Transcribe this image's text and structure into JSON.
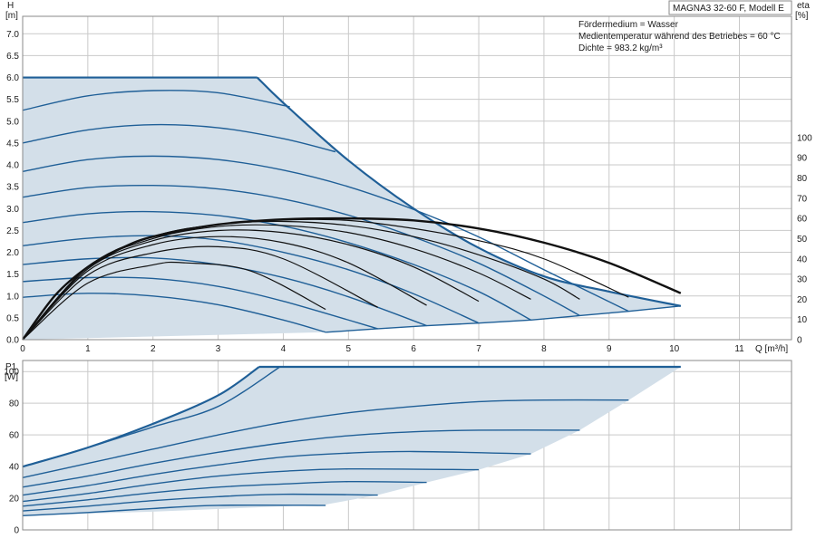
{
  "header": {
    "title": "MAGNA3 32-60 F, Modell E",
    "info_lines": [
      "Fördermedium = Wasser",
      "Medientemperatur während des Betriebes = 60 °C",
      "Dichte = 983.2 kg/m³"
    ]
  },
  "chart_data": [
    {
      "type": "line",
      "name": "head",
      "ylabel_top": "H",
      "ylabel_unit": "[m]",
      "xlabel": "Q [m³/h]",
      "y2label_top": "eta",
      "y2label_unit": "[%]",
      "xlim": [
        0,
        11.8
      ],
      "ylim": [
        0,
        7.4
      ],
      "y2lim": [
        0,
        160
      ],
      "xticks": [
        "0",
        "1",
        "2",
        "3",
        "4",
        "5",
        "6",
        "7",
        "8",
        "9",
        "10",
        "11"
      ],
      "yticks": [
        "0.0",
        "0.5",
        "1.0",
        "1.5",
        "2.0",
        "2.5",
        "3.0",
        "3.5",
        "4.0",
        "4.5",
        "5.0",
        "5.5",
        "6.0",
        "6.5",
        "7.0"
      ],
      "y2ticks": [
        "0",
        "10",
        "20",
        "30",
        "40",
        "50",
        "60",
        "70",
        "80",
        "90",
        "100"
      ],
      "grid": true,
      "max_curve": [
        [
          0,
          6.0
        ],
        [
          3.6,
          6.0
        ],
        [
          4.0,
          5.42
        ],
        [
          5.0,
          4.1
        ],
        [
          6.0,
          3.0
        ],
        [
          7.0,
          2.1
        ],
        [
          8.0,
          1.45
        ],
        [
          9.0,
          1.1
        ],
        [
          10.1,
          0.77
        ]
      ],
      "min_boundary": [
        [
          0,
          0.0
        ],
        [
          4.65,
          0.17
        ],
        [
          5.45,
          0.25
        ],
        [
          6.2,
          0.32
        ],
        [
          7.0,
          0.38
        ],
        [
          7.8,
          0.45
        ],
        [
          8.55,
          0.55
        ],
        [
          9.3,
          0.65
        ],
        [
          10.1,
          0.77
        ]
      ],
      "speed_curves": [
        [
          [
            0,
            0.97
          ],
          [
            1,
            1.06
          ],
          [
            2,
            1.0
          ],
          [
            3,
            0.8
          ],
          [
            4,
            0.45
          ],
          [
            4.65,
            0.17
          ]
        ],
        [
          [
            0,
            1.33
          ],
          [
            1,
            1.42
          ],
          [
            2,
            1.4
          ],
          [
            3,
            1.22
          ],
          [
            4,
            0.88
          ],
          [
            5.45,
            0.25
          ]
        ],
        [
          [
            0,
            1.72
          ],
          [
            1,
            1.85
          ],
          [
            2,
            1.87
          ],
          [
            3,
            1.72
          ],
          [
            4,
            1.42
          ],
          [
            5,
            0.98
          ],
          [
            6.2,
            0.32
          ]
        ],
        [
          [
            0,
            2.15
          ],
          [
            1,
            2.32
          ],
          [
            2,
            2.38
          ],
          [
            3,
            2.28
          ],
          [
            4,
            2.0
          ],
          [
            5,
            1.6
          ],
          [
            6,
            1.05
          ],
          [
            7.0,
            0.38
          ]
        ],
        [
          [
            0,
            2.68
          ],
          [
            1,
            2.88
          ],
          [
            2,
            2.93
          ],
          [
            3,
            2.84
          ],
          [
            4,
            2.6
          ],
          [
            5,
            2.22
          ],
          [
            6,
            1.72
          ],
          [
            7,
            1.1
          ],
          [
            7.8,
            0.45
          ]
        ],
        [
          [
            0,
            3.26
          ],
          [
            1,
            3.48
          ],
          [
            2,
            3.53
          ],
          [
            3,
            3.45
          ],
          [
            4,
            3.22
          ],
          [
            5,
            2.85
          ],
          [
            6,
            2.35
          ],
          [
            7,
            1.75
          ],
          [
            8,
            1.0
          ],
          [
            8.55,
            0.55
          ]
        ],
        [
          [
            0,
            3.85
          ],
          [
            1,
            4.12
          ],
          [
            2,
            4.2
          ],
          [
            3,
            4.12
          ],
          [
            4,
            3.88
          ],
          [
            5,
            3.5
          ],
          [
            6,
            2.98
          ],
          [
            7,
            2.35
          ],
          [
            8,
            1.6
          ],
          [
            9.3,
            0.65
          ]
        ],
        [
          [
            0,
            4.5
          ],
          [
            1,
            4.8
          ],
          [
            2,
            4.92
          ],
          [
            3,
            4.85
          ],
          [
            4,
            4.6
          ],
          [
            4.8,
            4.3
          ]
        ],
        [
          [
            0,
            5.25
          ],
          [
            1,
            5.58
          ],
          [
            2,
            5.7
          ],
          [
            3,
            5.65
          ],
          [
            4.1,
            5.33
          ]
        ]
      ],
      "eta_envelope": [
        [
          0,
          0
        ],
        [
          0.5,
          22
        ],
        [
          1,
          36
        ],
        [
          1.5,
          45
        ],
        [
          2,
          51
        ],
        [
          3,
          57
        ],
        [
          4,
          59.5
        ],
        [
          5,
          60
        ],
        [
          6,
          59
        ],
        [
          7,
          55
        ],
        [
          8,
          48
        ],
        [
          9,
          38
        ],
        [
          10.1,
          23
        ]
      ],
      "eta_curves": [
        [
          [
            0,
            0
          ],
          [
            1,
            28
          ],
          [
            2,
            37
          ],
          [
            2.5,
            38
          ],
          [
            3.5,
            34
          ],
          [
            4.65,
            15
          ]
        ],
        [
          [
            0,
            0
          ],
          [
            1,
            32
          ],
          [
            2,
            43
          ],
          [
            3,
            46
          ],
          [
            4,
            40
          ],
          [
            5.45,
            16
          ]
        ],
        [
          [
            0,
            0
          ],
          [
            1,
            34
          ],
          [
            2,
            47
          ],
          [
            3,
            51
          ],
          [
            4,
            48
          ],
          [
            5,
            38
          ],
          [
            6.2,
            17
          ]
        ],
        [
          [
            0,
            0
          ],
          [
            1,
            35
          ],
          [
            2,
            49
          ],
          [
            3,
            54
          ],
          [
            4,
            53
          ],
          [
            5,
            47
          ],
          [
            6,
            36
          ],
          [
            7.0,
            19
          ]
        ],
        [
          [
            0,
            0
          ],
          [
            1,
            36
          ],
          [
            2,
            50
          ],
          [
            3,
            56
          ],
          [
            4,
            56.5
          ],
          [
            5,
            53
          ],
          [
            6,
            45
          ],
          [
            7,
            33
          ],
          [
            7.8,
            20
          ]
        ],
        [
          [
            0,
            0
          ],
          [
            1,
            36
          ],
          [
            2,
            51
          ],
          [
            3,
            57
          ],
          [
            4,
            58.5
          ],
          [
            5,
            56.5
          ],
          [
            6,
            51
          ],
          [
            7,
            42
          ],
          [
            8,
            30
          ],
          [
            8.55,
            20
          ]
        ],
        [
          [
            0,
            0
          ],
          [
            1,
            36
          ],
          [
            2,
            51
          ],
          [
            3,
            57
          ],
          [
            4,
            59.2
          ],
          [
            5,
            59
          ],
          [
            6,
            55
          ],
          [
            7,
            49
          ],
          [
            8,
            40
          ],
          [
            9.3,
            21
          ]
        ]
      ]
    },
    {
      "type": "line",
      "name": "power",
      "ylabel_top": "P1",
      "ylabel_unit": "[W]",
      "xlim": [
        0,
        11.8
      ],
      "ylim": [
        0,
        107
      ],
      "yticks": [
        "0",
        "20",
        "40",
        "60",
        "80",
        "100"
      ],
      "grid": true,
      "max_curve": [
        [
          0,
          40
        ],
        [
          1,
          52
        ],
        [
          2,
          67
        ],
        [
          3,
          85
        ],
        [
          3.63,
          103
        ],
        [
          10.1,
          103
        ]
      ],
      "min_boundary": [
        [
          0,
          9
        ],
        [
          2,
          11.5
        ],
        [
          4.65,
          16
        ],
        [
          5.45,
          22
        ],
        [
          6.2,
          30
        ],
        [
          7.0,
          38
        ],
        [
          7.8,
          48
        ],
        [
          8.55,
          63
        ],
        [
          9.3,
          82
        ],
        [
          10.1,
          103
        ]
      ],
      "power_curves": [
        [
          [
            0,
            9
          ],
          [
            1,
            11
          ],
          [
            2,
            13.5
          ],
          [
            3,
            15.5
          ],
          [
            4.65,
            15.5
          ]
        ],
        [
          [
            0,
            12
          ],
          [
            1,
            15
          ],
          [
            2,
            18.5
          ],
          [
            3,
            21
          ],
          [
            4,
            22.5
          ],
          [
            5.45,
            22
          ]
        ],
        [
          [
            0,
            15
          ],
          [
            1,
            19
          ],
          [
            2,
            23.5
          ],
          [
            3,
            27
          ],
          [
            4,
            29
          ],
          [
            5,
            30.5
          ],
          [
            6.2,
            30
          ]
        ],
        [
          [
            0,
            18
          ],
          [
            1,
            23
          ],
          [
            2,
            29
          ],
          [
            3,
            34
          ],
          [
            4,
            37
          ],
          [
            5,
            38.5
          ],
          [
            7.0,
            38
          ]
        ],
        [
          [
            0,
            22
          ],
          [
            1,
            28
          ],
          [
            2,
            35
          ],
          [
            3,
            41
          ],
          [
            4,
            46
          ],
          [
            5,
            48.5
          ],
          [
            6,
            49.5
          ],
          [
            7.8,
            48
          ]
        ],
        [
          [
            0,
            27
          ],
          [
            1,
            34
          ],
          [
            2,
            42
          ],
          [
            3,
            49
          ],
          [
            4,
            55
          ],
          [
            5,
            59.5
          ],
          [
            6,
            62
          ],
          [
            7,
            63
          ],
          [
            8.55,
            63
          ]
        ],
        [
          [
            0,
            33
          ],
          [
            1,
            42
          ],
          [
            2,
            51
          ],
          [
            3,
            60
          ],
          [
            4,
            68
          ],
          [
            5,
            74
          ],
          [
            6,
            78
          ],
          [
            7,
            81
          ],
          [
            8,
            82
          ],
          [
            9.3,
            82
          ]
        ],
        [
          [
            0,
            40
          ],
          [
            1,
            52
          ],
          [
            2,
            65
          ],
          [
            3,
            78
          ],
          [
            3.95,
            103
          ]
        ],
        [
          [
            0,
            40
          ],
          [
            1,
            52
          ],
          [
            2,
            67
          ],
          [
            3,
            85
          ],
          [
            3.63,
            103
          ]
        ]
      ]
    }
  ]
}
